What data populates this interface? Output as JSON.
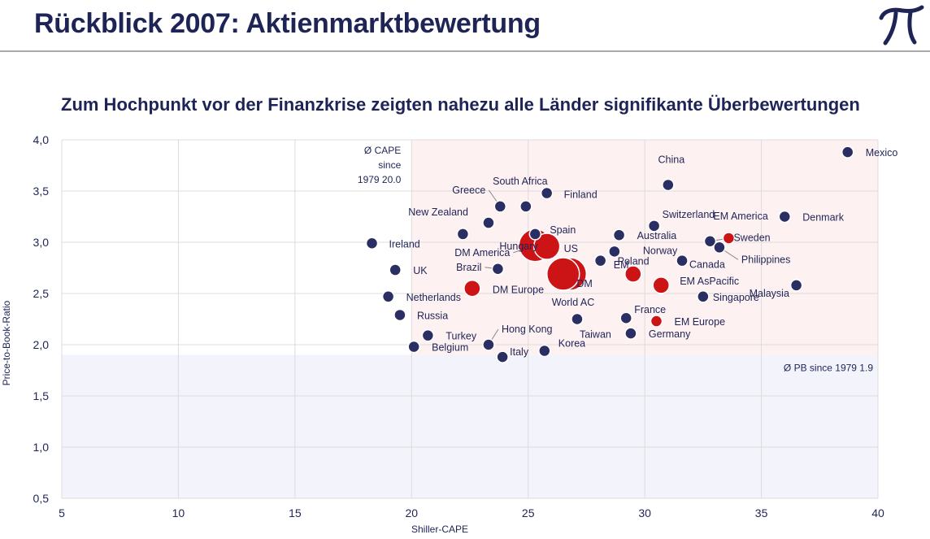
{
  "header": {
    "title": "Rückblick 2007: Aktienmarktbewertung",
    "logo_icon": "pi-logo-icon",
    "logo_color": "#1f2456"
  },
  "subtitle": "Zum Hochpunkt vor der Finanzkrise zeigten nahezu alle Länder signifikante Überbewertungen",
  "chart_data": {
    "type": "scatter",
    "xlabel": "Shiller-CAPE",
    "ylabel": "Price-to-Book-Ratio",
    "xlim": [
      5,
      40
    ],
    "ylim": [
      0.5,
      4.0
    ],
    "xticks": [
      5,
      10,
      15,
      20,
      25,
      30,
      35,
      40
    ],
    "xtick_labels": [
      "5",
      "10",
      "15",
      "20",
      "25",
      "30",
      "35",
      "40"
    ],
    "yticks": [
      0.5,
      1.0,
      1.5,
      2.0,
      2.5,
      3.0,
      3.5,
      4.0
    ],
    "ytick_labels": [
      "0,5",
      "1,0",
      "1,5",
      "2,0",
      "2,5",
      "3,0",
      "3,5",
      "4,0"
    ],
    "grid": true,
    "avg_cape": 20.0,
    "avg_pb": 1.9,
    "avg_cape_label": [
      "Ø CAPE",
      "since",
      "1979 20.0"
    ],
    "avg_pb_label": "Ø PB since 1979 1.9",
    "colors": {
      "country": "#2a2e62",
      "aggregate": "#cc1417",
      "overvalued_zone": "#fdf1f1",
      "undervalued_zone": "#f3f4fb",
      "grid": "#dcdcdc",
      "text": "#1f2456"
    },
    "points": [
      {
        "name": "Mexico",
        "x": 38.7,
        "y": 3.88,
        "group": "country",
        "size": "s"
      },
      {
        "name": "China",
        "x": 31.0,
        "y": 3.56,
        "group": "country",
        "size": "s"
      },
      {
        "name": "Finland",
        "x": 25.8,
        "y": 3.48,
        "group": "country",
        "size": "s"
      },
      {
        "name": "South Africa",
        "x": 24.9,
        "y": 3.35,
        "group": "country",
        "size": "s"
      },
      {
        "name": "Greece",
        "x": 23.8,
        "y": 3.35,
        "group": "country",
        "size": "s"
      },
      {
        "name": "Denmark",
        "x": 36.0,
        "y": 3.25,
        "group": "country",
        "size": "s"
      },
      {
        "name": "New Zealand",
        "x": 23.3,
        "y": 3.19,
        "group": "country",
        "size": "s"
      },
      {
        "name": "Switzerland",
        "x": 30.4,
        "y": 3.16,
        "group": "country",
        "size": "s"
      },
      {
        "name": "Spain",
        "x": 25.3,
        "y": 3.08,
        "group": "country",
        "size": "s"
      },
      {
        "name": "Hungary",
        "x": 22.2,
        "y": 3.08,
        "group": "country",
        "size": "s"
      },
      {
        "name": "Australia",
        "x": 28.9,
        "y": 3.07,
        "group": "country",
        "size": "s"
      },
      {
        "name": "EM America",
        "x": 33.6,
        "y": 3.04,
        "group": "aggregate",
        "size": "s"
      },
      {
        "name": "Sweden",
        "x": 32.8,
        "y": 3.01,
        "group": "country",
        "size": "s"
      },
      {
        "name": "Ireland",
        "x": 18.3,
        "y": 2.99,
        "group": "country",
        "size": "s"
      },
      {
        "name": "DM America",
        "x": 25.3,
        "y": 2.97,
        "group": "aggregate",
        "size": "xl"
      },
      {
        "name": "US",
        "x": 25.8,
        "y": 2.96,
        "group": "aggregate",
        "size": "l"
      },
      {
        "name": "Philippines",
        "x": 33.2,
        "y": 2.95,
        "group": "country",
        "size": "s"
      },
      {
        "name": "Norway",
        "x": 28.7,
        "y": 2.91,
        "group": "country",
        "size": "s"
      },
      {
        "name": "Poland",
        "x": 28.1,
        "y": 2.82,
        "group": "country",
        "size": "s"
      },
      {
        "name": "Canada",
        "x": 31.6,
        "y": 2.82,
        "group": "country",
        "size": "s"
      },
      {
        "name": "Brazil",
        "x": 23.7,
        "y": 2.74,
        "group": "country",
        "size": "s"
      },
      {
        "name": "UK",
        "x": 19.3,
        "y": 2.73,
        "group": "country",
        "size": "s"
      },
      {
        "name": "EM",
        "x": 29.5,
        "y": 2.69,
        "group": "aggregate",
        "size": "m"
      },
      {
        "name": "DM",
        "x": 26.8,
        "y": 2.69,
        "group": "aggregate",
        "size": "xl"
      },
      {
        "name": "World AC",
        "x": 26.5,
        "y": 2.69,
        "group": "aggregate",
        "size": "xl"
      },
      {
        "name": "EM AsPacific",
        "x": 30.7,
        "y": 2.58,
        "group": "aggregate",
        "size": "m"
      },
      {
        "name": "Malaysia",
        "x": 36.5,
        "y": 2.58,
        "group": "country",
        "size": "s"
      },
      {
        "name": "DM Europe",
        "x": 22.6,
        "y": 2.55,
        "group": "aggregate",
        "size": "m"
      },
      {
        "name": "Netherlands",
        "x": 19.0,
        "y": 2.47,
        "group": "country",
        "size": "s"
      },
      {
        "name": "Singapore",
        "x": 32.5,
        "y": 2.47,
        "group": "country",
        "size": "s"
      },
      {
        "name": "Russia",
        "x": 19.5,
        "y": 2.29,
        "group": "country",
        "size": "s"
      },
      {
        "name": "France",
        "x": 29.2,
        "y": 2.26,
        "group": "country",
        "size": "s"
      },
      {
        "name": "Taiwan",
        "x": 27.1,
        "y": 2.25,
        "group": "country",
        "size": "s"
      },
      {
        "name": "EM Europe",
        "x": 30.5,
        "y": 2.23,
        "group": "aggregate",
        "size": "s"
      },
      {
        "name": "Germany",
        "x": 29.4,
        "y": 2.11,
        "group": "country",
        "size": "s"
      },
      {
        "name": "Turkey",
        "x": 20.7,
        "y": 2.09,
        "group": "country",
        "size": "s"
      },
      {
        "name": "Hong Kong",
        "x": 23.3,
        "y": 2.0,
        "group": "country",
        "size": "s"
      },
      {
        "name": "Belgium",
        "x": 20.1,
        "y": 1.98,
        "group": "country",
        "size": "s"
      },
      {
        "name": "Korea",
        "x": 25.7,
        "y": 1.94,
        "group": "country",
        "size": "s"
      },
      {
        "name": "Italy",
        "x": 23.9,
        "y": 1.88,
        "group": "country",
        "size": "s"
      }
    ]
  }
}
